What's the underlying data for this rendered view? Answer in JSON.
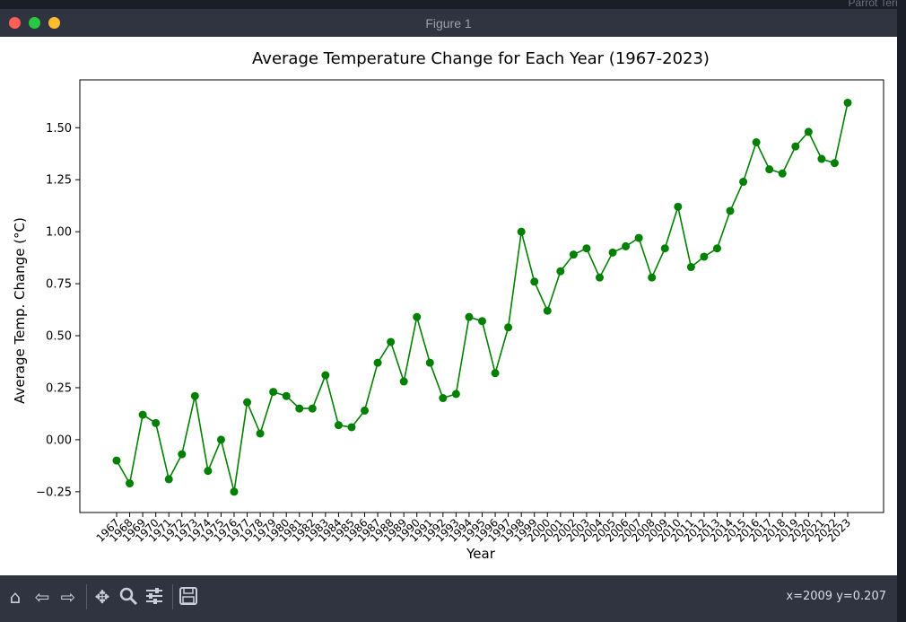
{
  "window": {
    "title": "Figure 1",
    "background_app_title": "Parrot Term"
  },
  "toolbar": {
    "icons": [
      "home-icon",
      "back-arrow-icon",
      "forward-arrow-icon",
      "pan-icon",
      "zoom-icon",
      "configure-subplots-icon",
      "save-icon"
    ],
    "coords": "x=2009 y=0.207"
  },
  "chart_data": {
    "type": "line",
    "title": "Average Temperature Change for Each Year (1967-2023)",
    "xlabel": "Year",
    "ylabel": "Average Temp. Change (°C)",
    "ylim": [
      -0.35,
      1.73
    ],
    "yticks": [
      "−0.25",
      "0.00",
      "0.25",
      "0.50",
      "0.75",
      "1.00",
      "1.25",
      "1.50"
    ],
    "ytick_values": [
      -0.25,
      0,
      0.25,
      0.5,
      0.75,
      1.0,
      1.25,
      1.5
    ],
    "grid": false,
    "color": "#008000",
    "x": [
      1967,
      1968,
      1969,
      1970,
      1971,
      1972,
      1973,
      1974,
      1975,
      1976,
      1977,
      1978,
      1979,
      1980,
      1981,
      1982,
      1983,
      1984,
      1985,
      1986,
      1987,
      1988,
      1989,
      1990,
      1991,
      1992,
      1993,
      1994,
      1995,
      1996,
      1997,
      1998,
      1999,
      2000,
      2001,
      2002,
      2003,
      2004,
      2005,
      2006,
      2007,
      2008,
      2009,
      2010,
      2011,
      2012,
      2013,
      2014,
      2015,
      2016,
      2017,
      2018,
      2019,
      2020,
      2021,
      2022,
      2023
    ],
    "values": [
      -0.1,
      -0.21,
      0.12,
      0.08,
      -0.19,
      -0.07,
      0.21,
      -0.15,
      0.0,
      -0.25,
      0.18,
      0.03,
      0.23,
      0.21,
      0.15,
      0.15,
      0.31,
      0.07,
      0.06,
      0.14,
      0.37,
      0.47,
      0.28,
      0.59,
      0.37,
      0.2,
      0.22,
      0.59,
      0.57,
      0.32,
      0.54,
      1.0,
      0.76,
      0.62,
      0.81,
      0.89,
      0.92,
      0.78,
      0.9,
      0.93,
      0.97,
      0.78,
      0.92,
      1.12,
      0.83,
      0.88,
      0.92,
      1.1,
      1.24,
      1.43,
      1.3,
      1.28,
      1.41,
      1.48,
      1.35,
      1.33,
      1.62
    ]
  }
}
